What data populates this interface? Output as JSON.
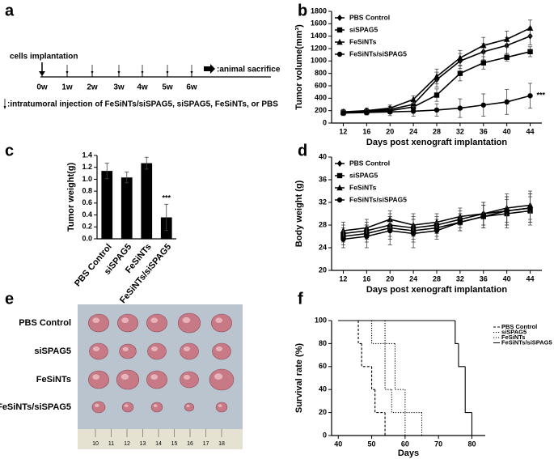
{
  "panel_labels": [
    "a",
    "b",
    "c",
    "d",
    "e",
    "f"
  ],
  "timeline": {
    "start_label": "cells implantation",
    "weeks": [
      "0w",
      "1w",
      "2w",
      "3w",
      "4w",
      "5w",
      "6w"
    ],
    "end_label": ":animal sacrifice",
    "injection_label": ":intratumoral injection of FeSiNTs/siSPAG5, siSPAG5, FeSiNTs, or PBS"
  },
  "photo": {
    "rows": [
      "PBS Control",
      "siSPAG5",
      "FeSiNTs",
      "FeSiNTs/siSPAG5"
    ],
    "ruler": [
      "10",
      "11",
      "12",
      "13",
      "14",
      "15",
      "16",
      "17",
      "18"
    ]
  },
  "chart_data": [
    {
      "type": "line",
      "x_label": "Days post xenograft implantation",
      "y_label": "Tumor volume(mm³)",
      "x": [
        12,
        16,
        20,
        24,
        28,
        32,
        36,
        40,
        44
      ],
      "xlim": [
        10,
        46
      ],
      "xticks": [
        12,
        16,
        20,
        24,
        28,
        32,
        36,
        40,
        44
      ],
      "ylim": [
        0,
        1800
      ],
      "yticks": [
        0,
        200,
        400,
        600,
        800,
        1000,
        1200,
        1400,
        1600,
        1800
      ],
      "legend": "upper left",
      "annotation": "***",
      "series": [
        {
          "name": "PBS Control",
          "color": "#000000",
          "marker": "diamond",
          "values": [
            170,
            190,
            220,
            300,
            700,
            1000,
            1150,
            1250,
            1400
          ],
          "errors": [
            40,
            40,
            50,
            60,
            120,
            120,
            130,
            130,
            140
          ]
        },
        {
          "name": "siSPAG5",
          "color": "#000000",
          "marker": "square",
          "values": [
            170,
            180,
            200,
            260,
            450,
            800,
            970,
            1060,
            1150
          ],
          "errors": [
            40,
            40,
            50,
            60,
            100,
            120,
            100,
            60,
            80
          ]
        },
        {
          "name": "FeSiNTs",
          "color": "#000000",
          "marker": "triangle",
          "values": [
            180,
            200,
            240,
            380,
            750,
            1050,
            1250,
            1350,
            1530
          ],
          "errors": [
            40,
            40,
            50,
            60,
            120,
            120,
            130,
            130,
            130
          ]
        },
        {
          "name": "FeSiNTs/siSPAG5",
          "color": "#000000",
          "marker": "circle",
          "values": [
            160,
            170,
            180,
            190,
            210,
            240,
            290,
            340,
            440
          ],
          "errors": [
            40,
            40,
            60,
            80,
            100,
            150,
            180,
            200,
            200
          ]
        }
      ]
    },
    {
      "type": "bar",
      "y_label": "Tumor weight(g)",
      "categories": [
        "PBS Control",
        "siSPAG5",
        "FeSiNTs",
        "FeSiNTs/siSPAG5"
      ],
      "values": [
        1.14,
        1.03,
        1.27,
        0.36
      ],
      "errors": [
        0.13,
        0.09,
        0.1,
        0.22
      ],
      "color": "#000000",
      "ylim": [
        0,
        1.4
      ],
      "yticks": [
        {
          "value": 0,
          "label": "0.0"
        },
        0.2,
        0.4,
        0.6,
        0.8,
        {
          "value": 1,
          "label": "1.0"
        },
        1.2,
        1.4
      ],
      "annotation": "***"
    },
    {
      "type": "line",
      "x_label": "Days post xenograft implantation",
      "y_label": "Body weight (g)",
      "x": [
        12,
        16,
        20,
        24,
        28,
        32,
        36,
        40,
        44
      ],
      "xlim": [
        10,
        46
      ],
      "xticks": [
        12,
        16,
        20,
        24,
        28,
        32,
        36,
        40,
        44
      ],
      "ylim": [
        20,
        40
      ],
      "yticks": [
        20,
        24,
        28,
        32,
        36,
        40
      ],
      "legend": "upper left",
      "series": [
        {
          "name": "PBS Control",
          "color": "#000000",
          "marker": "diamond",
          "values": [
            26.5,
            27,
            28,
            27.5,
            28,
            29,
            30,
            30.5,
            31
          ],
          "errors": [
            1.5,
            1.5,
            2,
            2,
            1.5,
            1.5,
            2,
            2.5,
            2.5
          ]
        },
        {
          "name": "siSPAG5",
          "color": "#000000",
          "marker": "square",
          "values": [
            26,
            26.5,
            27.5,
            27,
            27.5,
            28.5,
            29.5,
            30,
            30.5
          ],
          "errors": [
            1.5,
            1.5,
            2,
            2,
            1.5,
            1.5,
            2,
            2.5,
            2.5
          ]
        },
        {
          "name": "FeSiNTs",
          "color": "#000000",
          "marker": "triangle",
          "values": [
            27,
            27.5,
            29,
            28,
            28.5,
            29.5,
            30,
            31,
            31.5
          ],
          "errors": [
            1.5,
            1.5,
            1.5,
            2,
            1.5,
            1.5,
            2,
            2.5,
            2.5
          ]
        },
        {
          "name": "FeSiNTs/siSPAG5",
          "color": "#000000",
          "marker": "circle",
          "values": [
            25.5,
            26,
            27,
            26.5,
            27,
            28.5,
            29.5,
            30.5,
            31
          ],
          "errors": [
            1.5,
            2,
            2.5,
            2.5,
            1.5,
            1.5,
            2,
            2.5,
            2.5
          ]
        }
      ]
    },
    {
      "type": "step",
      "x_label": "Days",
      "y_label": "Survival rate (%)",
      "xlim": [
        38,
        84
      ],
      "xticks": [
        40,
        50,
        60,
        70,
        80
      ],
      "ylim": [
        0,
        100
      ],
      "yticks": [
        0,
        20,
        40,
        60,
        80,
        100
      ],
      "legend": "right",
      "series": [
        {
          "name": "PBS Control",
          "color": "#000000",
          "line": "dashed",
          "x": [
            40,
            46,
            47,
            50,
            51,
            54
          ],
          "values": [
            100,
            80,
            60,
            40,
            20,
            0
          ]
        },
        {
          "name": "siSPAG5",
          "color": "#000000",
          "line": "dotted",
          "x": [
            40,
            50,
            54,
            56,
            60
          ],
          "values": [
            100,
            80,
            40,
            20,
            0
          ]
        },
        {
          "name": "FeSiNTs",
          "color": "#000000",
          "line": "dotted",
          "x": [
            40,
            54,
            57,
            60,
            65
          ],
          "values": [
            100,
            80,
            40,
            20,
            0
          ]
        },
        {
          "name": "FeSiNTs/siSPAG5",
          "color": "#000000",
          "line": "solid",
          "x": [
            40,
            75,
            76,
            78,
            80
          ],
          "values": [
            100,
            80,
            60,
            20,
            0
          ]
        }
      ]
    }
  ]
}
